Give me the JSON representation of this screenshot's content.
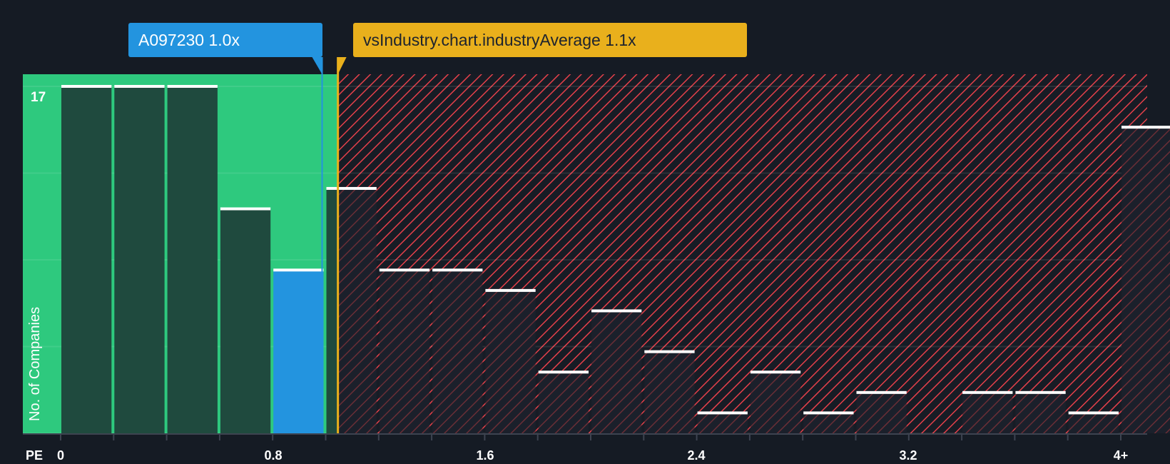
{
  "chart_data": {
    "type": "bar",
    "title": "",
    "xlabel": "PE",
    "ylabel": "No. of Companies",
    "x_tick_labels": [
      "0",
      "0.8",
      "1.6",
      "2.4",
      "3.2",
      "4+"
    ],
    "bin_width": 0.2,
    "categories": [
      "0-0.2",
      "0.2-0.4",
      "0.4-0.6",
      "0.6-0.8",
      "0.8-1.0",
      "1.0-1.2",
      "1.2-1.4",
      "1.4-1.6",
      "1.6-1.8",
      "1.8-2.0",
      "2.0-2.2",
      "2.2-2.4",
      "2.4-2.6",
      "2.6-2.8",
      "2.8-3.0",
      "3.0-3.2",
      "3.2-3.4",
      "3.4-3.6",
      "3.6-3.8",
      "3.8-4.0",
      "4+"
    ],
    "values": [
      17,
      17,
      17,
      11,
      8,
      12,
      8,
      8,
      7,
      3,
      6,
      4,
      1,
      3,
      1,
      2,
      0,
      2,
      2,
      1,
      15
    ],
    "highlight_index": 4,
    "ylim": [
      0,
      17
    ],
    "y_tick_labels": [
      "17"
    ],
    "grid": true,
    "annotations": [
      {
        "label": "A097230 1.0x",
        "value": 1.0,
        "color": "#2394df"
      },
      {
        "label": "vsIndustry.chart.industryAverage 1.1x",
        "value": 1.1,
        "color": "#e9b01c"
      }
    ],
    "regions": {
      "undervalued_color": "#2ec97e",
      "overvalued_color": "#e5404a",
      "split_value": 1.05
    }
  },
  "callouts": {
    "company": "A097230 1.0x",
    "industry": "vsIndustry.chart.industryAverage 1.1x"
  },
  "axis": {
    "ylabel": "No. of Companies",
    "ytick_top": "17",
    "xlabel": "PE",
    "xticks": [
      "0",
      "0.8",
      "1.6",
      "2.4",
      "3.2",
      "4+"
    ]
  },
  "colors": {
    "background": "#151b24",
    "green_region": "#2ec97e",
    "bar_dark": "#1f4a3e",
    "company_bar": "#2394df",
    "hatch": "#e5404a",
    "industry_line": "#e9b01c",
    "cap": "#ffffff"
  }
}
